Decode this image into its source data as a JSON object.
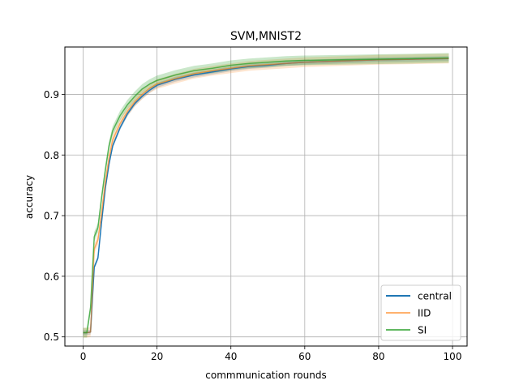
{
  "chart_data": {
    "type": "line",
    "title": "SVM,MNIST2",
    "xlabel": "commmunication rounds",
    "ylabel": "accuracy",
    "xlim": [
      -4.95,
      103.95
    ],
    "ylim": [
      0.4849,
      0.9781
    ],
    "x_ticks": [
      0,
      20,
      40,
      60,
      80,
      100
    ],
    "y_ticks": [
      0.5,
      0.6,
      0.7,
      0.8,
      0.9
    ],
    "grid": true,
    "legend_position": "lower-right",
    "x": [
      0,
      1,
      2,
      3,
      4,
      5,
      6,
      7,
      8,
      10,
      12,
      14,
      16,
      18,
      20,
      25,
      30,
      35,
      40,
      45,
      50,
      55,
      60,
      70,
      80,
      90,
      99
    ],
    "series": [
      {
        "name": "central",
        "color": "#1f77b4",
        "band": 0.004,
        "values": [
          0.507,
          0.507,
          0.508,
          0.615,
          0.63,
          0.69,
          0.745,
          0.785,
          0.815,
          0.845,
          0.868,
          0.885,
          0.897,
          0.907,
          0.915,
          0.925,
          0.932,
          0.937,
          0.942,
          0.946,
          0.948,
          0.951,
          0.953,
          0.955,
          0.957,
          0.958,
          0.959
        ]
      },
      {
        "name": "IID",
        "color": "#ff7f0e",
        "band": 0.008,
        "values": [
          0.507,
          0.507,
          0.508,
          0.645,
          0.66,
          0.705,
          0.755,
          0.795,
          0.825,
          0.852,
          0.872,
          0.888,
          0.9,
          0.91,
          0.917,
          0.926,
          0.934,
          0.939,
          0.943,
          0.947,
          0.949,
          0.951,
          0.953,
          0.955,
          0.957,
          0.958,
          0.959
        ]
      },
      {
        "name": "SI",
        "color": "#2ca02c",
        "band": 0.008,
        "values": [
          0.507,
          0.507,
          0.548,
          0.665,
          0.68,
          0.73,
          0.775,
          0.815,
          0.84,
          0.865,
          0.883,
          0.897,
          0.909,
          0.917,
          0.923,
          0.932,
          0.939,
          0.943,
          0.948,
          0.951,
          0.953,
          0.955,
          0.956,
          0.957,
          0.958,
          0.959,
          0.96
        ]
      }
    ]
  }
}
